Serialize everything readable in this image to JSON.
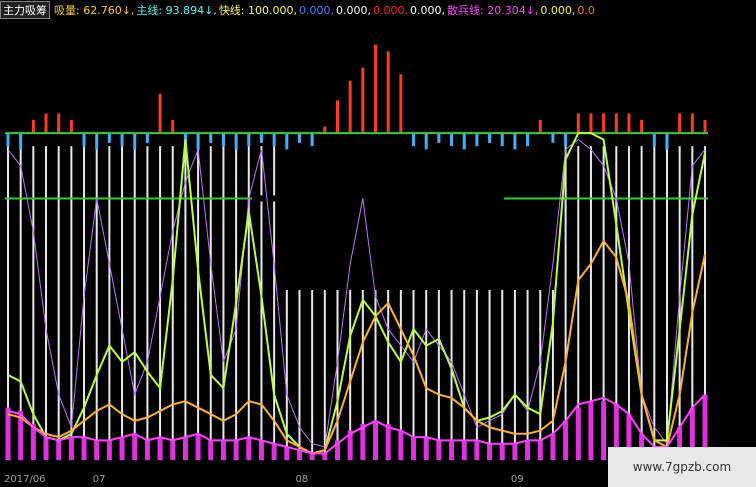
{
  "chart_data": {
    "type": "line",
    "indicator_name": "主力吸筹",
    "header_items": [
      {
        "text": "吸量: 62.760↓,",
        "color": "#ffd000"
      },
      {
        "text": "主线: 93.894↓,",
        "color": "#40ffff"
      },
      {
        "text": "快线: 100.000,",
        "color": "#ffff40"
      },
      {
        "text": "0.000,",
        "color": "#4080ff"
      },
      {
        "text": "0.000,",
        "color": "#ffffff"
      },
      {
        "text": "0.000,",
        "color": "#ff2020"
      },
      {
        "text": "0.000,",
        "color": "#ffffff"
      },
      {
        "text": "散兵线: 20.304↓,",
        "color": "#ff40ff"
      },
      {
        "text": "0.000,",
        "color": "#ffff00"
      },
      {
        "text": "0.0",
        "color": "#ff8000"
      }
    ],
    "categories": [
      "2017/06",
      null,
      null,
      null,
      null,
      null,
      null,
      "07",
      null,
      null,
      null,
      null,
      null,
      null,
      null,
      null,
      null,
      null,
      null,
      null,
      null,
      null,
      null,
      "08",
      null,
      null,
      null,
      null,
      null,
      null,
      null,
      null,
      null,
      null,
      null,
      null,
      null,
      null,
      null,
      null,
      "09",
      null,
      null,
      null,
      null,
      null,
      null,
      null,
      null,
      null,
      null,
      null,
      null,
      null,
      null,
      null
    ],
    "ylim": [
      0,
      130
    ],
    "reference_lines": [
      {
        "value": 100,
        "color": "#30d030"
      },
      {
        "value": 80,
        "color": "#30d030"
      }
    ],
    "white_bars": {
      "color": "#e8e8e8",
      "values": [
        96,
        96,
        96,
        96,
        96,
        96,
        96,
        96,
        96,
        96,
        96,
        96,
        96,
        96,
        96,
        96,
        96,
        96,
        96,
        96,
        96,
        96,
        52,
        52,
        52,
        52,
        52,
        52,
        52,
        52,
        52,
        52,
        52,
        52,
        52,
        52,
        52,
        52,
        52,
        52,
        52,
        52,
        52,
        52,
        96,
        96,
        96,
        96,
        96,
        96,
        96,
        96,
        96,
        96,
        96,
        96
      ]
    },
    "signal": {
      "base": 100,
      "up_color": "#ff3a20",
      "down_color": "#40b0ff",
      "values": [
        96,
        95,
        104,
        106,
        106,
        104,
        96,
        95,
        97,
        96,
        95,
        97,
        112,
        104,
        96,
        95,
        97,
        96,
        95,
        96,
        97,
        96,
        95,
        97,
        96,
        102,
        110,
        116,
        120,
        127,
        125,
        118,
        96,
        95,
        97,
        96,
        95,
        96,
        97,
        96,
        95,
        96,
        104,
        97,
        96,
        106,
        106,
        106,
        106,
        106,
        104,
        96,
        95,
        106,
        106,
        104
      ]
    },
    "volume": {
      "color": "#e030e0",
      "values": [
        16,
        15,
        11,
        7,
        6,
        7,
        7,
        6,
        6,
        7,
        8,
        6,
        7,
        6,
        7,
        8,
        6,
        6,
        6,
        7,
        6,
        5,
        4,
        3,
        2,
        2,
        6,
        9,
        11,
        12,
        11,
        9,
        7,
        7,
        6,
        6,
        6,
        6,
        5,
        5,
        5,
        6,
        6,
        8,
        12,
        16,
        18,
        18,
        17,
        14,
        8,
        4,
        4,
        10,
        16,
        20
      ]
    },
    "series": [
      {
        "color": "#c070ff",
        "width": 1,
        "values": [
          95,
          90,
          70,
          40,
          20,
          10,
          50,
          80,
          60,
          40,
          20,
          30,
          50,
          70,
          85,
          95,
          60,
          30,
          40,
          80,
          95,
          60,
          20,
          10,
          5,
          4,
          30,
          60,
          80,
          50,
          40,
          35,
          30,
          40,
          35,
          30,
          20,
          10,
          12,
          14,
          20,
          15,
          30,
          60,
          95,
          98,
          95,
          90,
          80,
          60,
          20,
          10,
          5,
          50,
          90,
          95
        ]
      },
      {
        "color": "#b8ff40",
        "width": 2,
        "values": [
          26,
          24,
          14,
          7,
          6,
          8,
          16,
          26,
          35,
          30,
          33,
          27,
          22,
          55,
          98,
          58,
          26,
          22,
          48,
          76,
          50,
          20,
          8,
          4,
          2,
          3,
          18,
          38,
          49,
          44,
          36,
          30,
          40,
          35,
          37,
          28,
          16,
          12,
          13,
          15,
          20,
          16,
          14,
          42,
          92,
          100,
          100,
          98,
          72,
          45,
          20,
          6,
          6,
          40,
          75,
          94
        ]
      },
      {
        "color": "#ffb030",
        "width": 2,
        "values": [
          14,
          13,
          10,
          8,
          7,
          9,
          12,
          15,
          17,
          14,
          12,
          13,
          15,
          17,
          18,
          16,
          14,
          12,
          14,
          18,
          17,
          12,
          6,
          4,
          2,
          3,
          12,
          24,
          36,
          44,
          48,
          40,
          32,
          22,
          20,
          19,
          16,
          12,
          10,
          9,
          8,
          8,
          9,
          12,
          30,
          55,
          60,
          67,
          62,
          48,
          20,
          6,
          4,
          20,
          45,
          63
        ]
      },
      {
        "color": "#ff40ff",
        "width": 2,
        "values": [
          15,
          14,
          10,
          7,
          6,
          7,
          7,
          6,
          6,
          7,
          8,
          6,
          7,
          6,
          7,
          8,
          6,
          6,
          6,
          7,
          6,
          5,
          4,
          3,
          2,
          2,
          5,
          8,
          10,
          12,
          10,
          9,
          7,
          7,
          6,
          6,
          6,
          6,
          5,
          5,
          5,
          6,
          6,
          8,
          12,
          17,
          18,
          19,
          17,
          14,
          8,
          4,
          4,
          10,
          16,
          20
        ]
      }
    ],
    "watermark": "www.7gpzb.com"
  }
}
